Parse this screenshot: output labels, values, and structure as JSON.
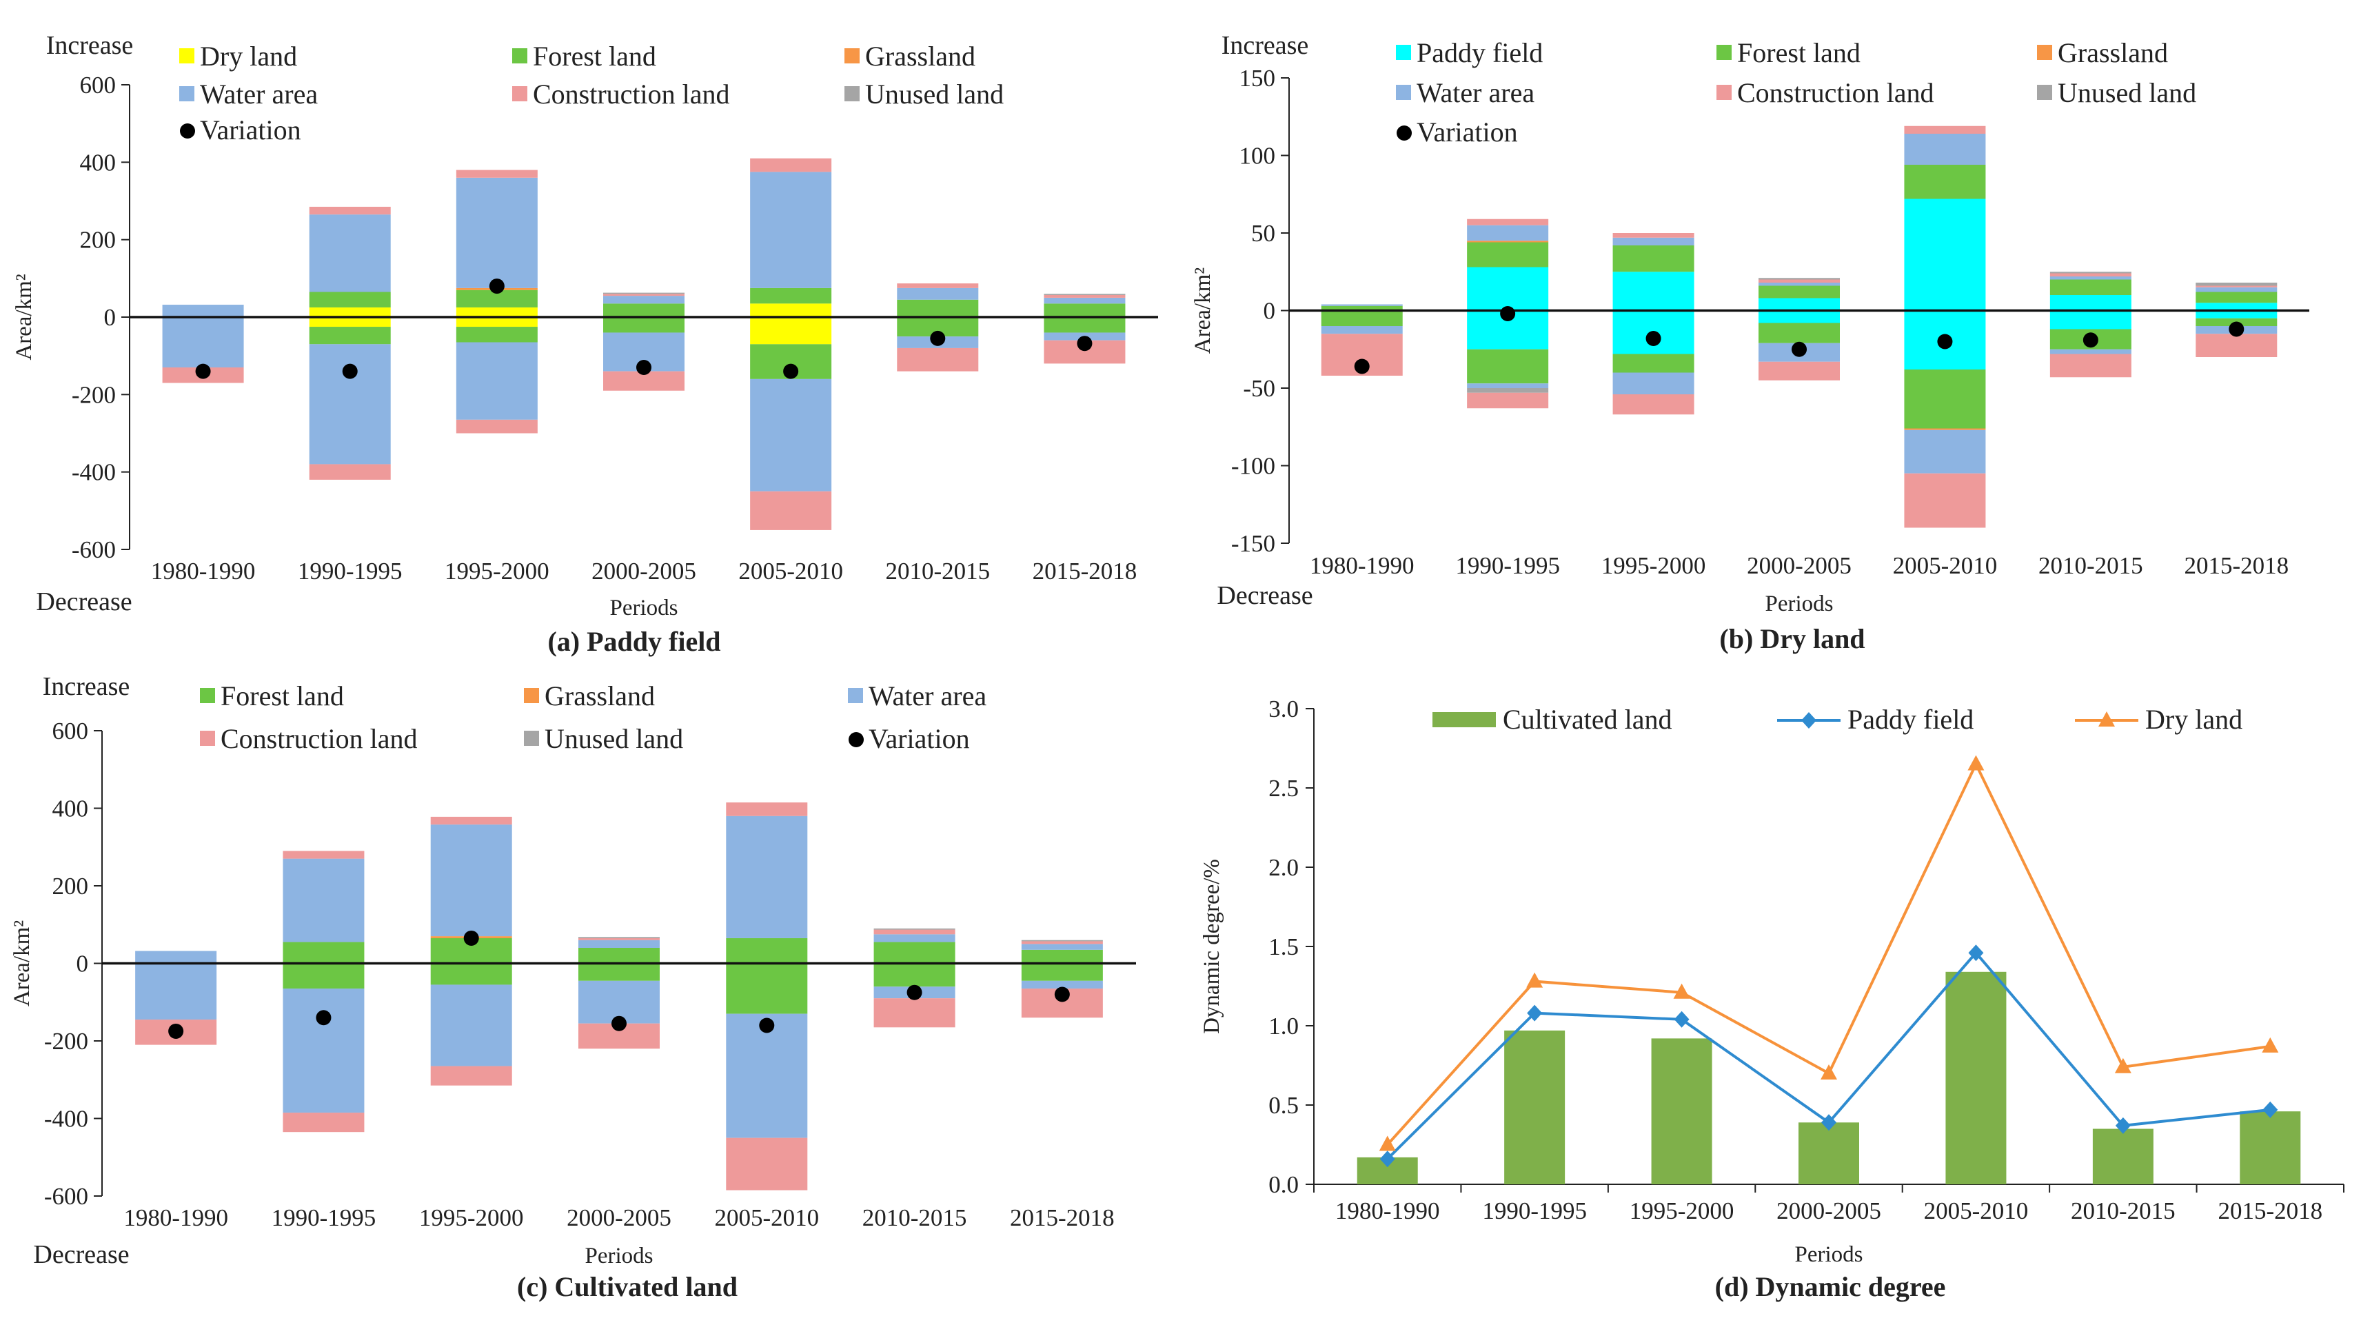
{
  "chart_data": [
    {
      "id": "a",
      "type": "stacked-bar",
      "title": "(a) Paddy field",
      "xlabel": "Periods",
      "ylabel": "Area/km²",
      "top_label": "Increase",
      "bottom_label": "Decrease",
      "ylim": [
        -600,
        600
      ],
      "yticks": [
        600,
        400,
        200,
        0,
        -200,
        -400,
        -600
      ],
      "categories": [
        "1980-1990",
        "1990-1995",
        "1995-2000",
        "2000-2005",
        "2005-2010",
        "2010-2015",
        "2015-2018"
      ],
      "legend": [
        "Dry land",
        "Forest land",
        "Grassland",
        "Water area",
        "Construction land",
        "Unused land",
        "Variation"
      ],
      "positive_series": [
        {
          "name": "Dry land",
          "color": "#FFFF00",
          "values": [
            0,
            25,
            25,
            0,
            35,
            0,
            0
          ]
        },
        {
          "name": "Forest land",
          "color": "#6CC644",
          "values": [
            0,
            40,
            45,
            35,
            40,
            45,
            35
          ]
        },
        {
          "name": "Grassland",
          "color": "#F79646",
          "values": [
            0,
            0,
            5,
            0,
            0,
            0,
            0
          ]
        },
        {
          "name": "Water area",
          "color": "#8DB4E2",
          "values": [
            32,
            200,
            285,
            20,
            300,
            30,
            15
          ]
        },
        {
          "name": "Construction land",
          "color": "#EE9A9A",
          "values": [
            0,
            20,
            20,
            5,
            35,
            12,
            7
          ]
        },
        {
          "name": "Unused land",
          "color": "#A5A5A5",
          "values": [
            0,
            0,
            0,
            3,
            0,
            0,
            3
          ]
        }
      ],
      "negative_series": [
        {
          "name": "Dry land",
          "color": "#FFFF00",
          "values": [
            0,
            -25,
            -25,
            0,
            -70,
            0,
            0
          ]
        },
        {
          "name": "Forest land",
          "color": "#6CC644",
          "values": [
            0,
            -45,
            -40,
            -40,
            -90,
            -50,
            -40
          ]
        },
        {
          "name": "Water area",
          "color": "#8DB4E2",
          "values": [
            -130,
            -310,
            -200,
            -100,
            -290,
            -30,
            -20
          ]
        },
        {
          "name": "Construction land",
          "color": "#EE9A9A",
          "values": [
            -40,
            -40,
            -35,
            -50,
            -100,
            -60,
            -60
          ]
        }
      ],
      "variation": [
        -140,
        -140,
        80,
        -130,
        -140,
        -55,
        -68
      ]
    },
    {
      "id": "b",
      "type": "stacked-bar",
      "title": "(b) Dry land",
      "xlabel": "Periods",
      "ylabel": "Area/km²",
      "top_label": "Increase",
      "bottom_label": "Decrease",
      "ylim": [
        -150,
        150
      ],
      "yticks": [
        150,
        100,
        50,
        0,
        -50,
        -100,
        -150
      ],
      "categories": [
        "1980-1990",
        "1990-1995",
        "1995-2000",
        "2000-2005",
        "2005-2010",
        "2010-2015",
        "2015-2018"
      ],
      "legend": [
        "Paddy field",
        "Forest land",
        "Grassland",
        "Water area",
        "Construction land",
        "Unused land",
        "Variation"
      ],
      "positive_series": [
        {
          "name": "Paddy field",
          "color": "#00FFFF",
          "values": [
            0,
            28,
            25,
            8,
            72,
            10,
            5
          ]
        },
        {
          "name": "Forest land",
          "color": "#6CC644",
          "values": [
            3,
            16,
            17,
            8,
            22,
            10,
            7
          ]
        },
        {
          "name": "Grassland",
          "color": "#F79646",
          "values": [
            0,
            1,
            0,
            0,
            0,
            0,
            0
          ]
        },
        {
          "name": "Water area",
          "color": "#8DB4E2",
          "values": [
            1,
            10,
            5,
            2,
            20,
            2,
            3
          ]
        },
        {
          "name": "Construction land",
          "color": "#EE9A9A",
          "values": [
            0,
            4,
            3,
            2,
            5,
            2,
            1
          ]
        },
        {
          "name": "Unused land",
          "color": "#A5A5A5",
          "values": [
            0,
            0,
            0,
            1,
            0,
            1,
            2
          ]
        }
      ],
      "negative_series": [
        {
          "name": "Paddy field",
          "color": "#00FFFF",
          "values": [
            0,
            -25,
            -28,
            -8,
            -38,
            -12,
            -5
          ]
        },
        {
          "name": "Forest land",
          "color": "#6CC644",
          "values": [
            -10,
            -22,
            -12,
            -13,
            -38,
            -13,
            -5
          ]
        },
        {
          "name": "Grassland",
          "color": "#F79646",
          "values": [
            0,
            0,
            0,
            0,
            -1,
            0,
            0
          ]
        },
        {
          "name": "Water area",
          "color": "#8DB4E2",
          "values": [
            -5,
            -3,
            -14,
            -12,
            -28,
            -3,
            -5
          ]
        },
        {
          "name": "Unused land",
          "color": "#A5A5A5",
          "values": [
            0,
            -3,
            0,
            0,
            0,
            0,
            0
          ]
        },
        {
          "name": "Construction land",
          "color": "#EE9A9A",
          "values": [
            -27,
            -10,
            -13,
            -12,
            -35,
            -15,
            -15
          ]
        }
      ],
      "variation": [
        -36,
        -2,
        -18,
        -25,
        -20,
        -19,
        -12
      ]
    },
    {
      "id": "c",
      "type": "stacked-bar",
      "title": "(c) Cultivated land",
      "xlabel": "Periods",
      "ylabel": "Area/km²",
      "top_label": "Increase",
      "bottom_label": "Decrease",
      "ylim": [
        -600,
        600
      ],
      "yticks": [
        600,
        400,
        200,
        0,
        -200,
        -400,
        -600
      ],
      "categories": [
        "1980-1990",
        "1990-1995",
        "1995-2000",
        "2000-2005",
        "2005-2010",
        "2010-2015",
        "2015-2018"
      ],
      "legend": [
        "Forest land",
        "Grassland",
        "Water area",
        "Construction land",
        "Unused land",
        "Variation"
      ],
      "positive_series": [
        {
          "name": "Forest land",
          "color": "#6CC644",
          "values": [
            0,
            55,
            65,
            40,
            65,
            55,
            35
          ]
        },
        {
          "name": "Grassland",
          "color": "#F79646",
          "values": [
            0,
            0,
            5,
            0,
            0,
            0,
            0
          ]
        },
        {
          "name": "Water area",
          "color": "#8DB4E2",
          "values": [
            32,
            215,
            288,
            20,
            315,
            20,
            15
          ]
        },
        {
          "name": "Construction land",
          "color": "#EE9A9A",
          "values": [
            0,
            20,
            20,
            5,
            35,
            12,
            7
          ]
        },
        {
          "name": "Unused land",
          "color": "#A5A5A5",
          "values": [
            0,
            0,
            0,
            3,
            0,
            3,
            3
          ]
        }
      ],
      "negative_series": [
        {
          "name": "Forest land",
          "color": "#6CC644",
          "values": [
            0,
            -65,
            -55,
            -45,
            -130,
            -60,
            -45
          ]
        },
        {
          "name": "Water area",
          "color": "#8DB4E2",
          "values": [
            -145,
            -320,
            -210,
            -110,
            -320,
            -30,
            -20
          ]
        },
        {
          "name": "Construction land",
          "color": "#EE9A9A",
          "values": [
            -65,
            -50,
            -50,
            -65,
            -135,
            -75,
            -75
          ]
        }
      ],
      "variation": [
        -175,
        -140,
        65,
        -155,
        -160,
        -75,
        -80
      ]
    },
    {
      "id": "d",
      "type": "bar-line",
      "title": "(d) Dynamic degree",
      "xlabel": "Periods",
      "ylabel": "Dynamic degree/%",
      "ylim": [
        0,
        3.0
      ],
      "yticks": [
        "3.0",
        "2.5",
        "2.0",
        "1.5",
        "1.0",
        "0.5",
        "0.0"
      ],
      "categories": [
        "1980-1990",
        "1990-1995",
        "1995-2000",
        "2000-2005",
        "2005-2010",
        "2010-2015",
        "2015-2018"
      ],
      "bar_series": {
        "name": "Cultivated land",
        "color": "#7FB04A",
        "values": [
          0.17,
          0.97,
          0.92,
          0.39,
          1.34,
          0.35,
          0.46
        ]
      },
      "line_series": [
        {
          "name": "Paddy field",
          "color": "#2E8BD0",
          "marker": "diamond",
          "values": [
            0.16,
            1.08,
            1.04,
            0.39,
            1.46,
            0.37,
            0.47
          ]
        },
        {
          "name": "Dry land",
          "color": "#F7923A",
          "marker": "triangle",
          "values": [
            0.25,
            1.28,
            1.21,
            0.7,
            2.65,
            0.74,
            0.87
          ]
        }
      ]
    }
  ]
}
